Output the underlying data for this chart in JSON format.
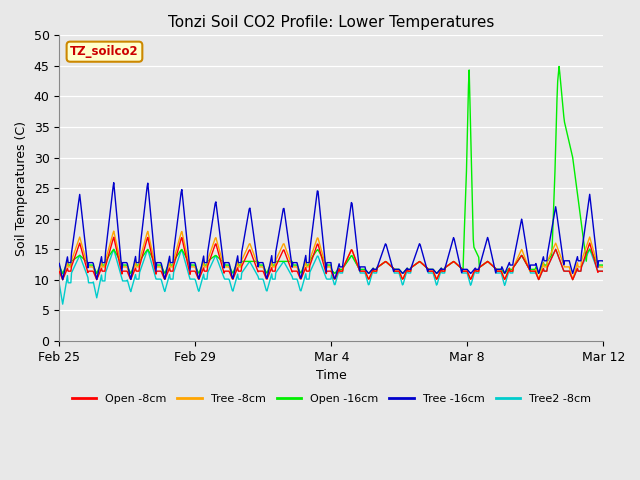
{
  "title": "Tonzi Soil CO2 Profile: Lower Temperatures",
  "xlabel": "Time",
  "ylabel": "Soil Temperatures (C)",
  "ylim": [
    0,
    50
  ],
  "yticks": [
    0,
    5,
    10,
    15,
    20,
    25,
    30,
    35,
    40,
    45,
    50
  ],
  "plot_bg": "#e8e8e8",
  "fig_bg": "#e8e8e8",
  "legend_label_box": "TZ_soilco2",
  "legend_entries": [
    "Open -8cm",
    "Tree -8cm",
    "Open -16cm",
    "Tree -16cm",
    "Tree2 -8cm"
  ],
  "legend_colors": [
    "#ff0000",
    "#ffa500",
    "#00ee00",
    "#0000cc",
    "#00cccc"
  ],
  "series_colors": {
    "open8": "#ff0000",
    "tree8": "#ffa500",
    "open16": "#00ee00",
    "tree16": "#0000cc",
    "tree2_8": "#00cccc"
  },
  "x_tick_labels": [
    "Feb 25",
    "Feb 29",
    "Mar 4",
    "Mar 8",
    "Mar 12"
  ],
  "x_tick_positions": [
    0,
    4,
    8,
    12,
    16
  ],
  "xlim": [
    0,
    16
  ]
}
